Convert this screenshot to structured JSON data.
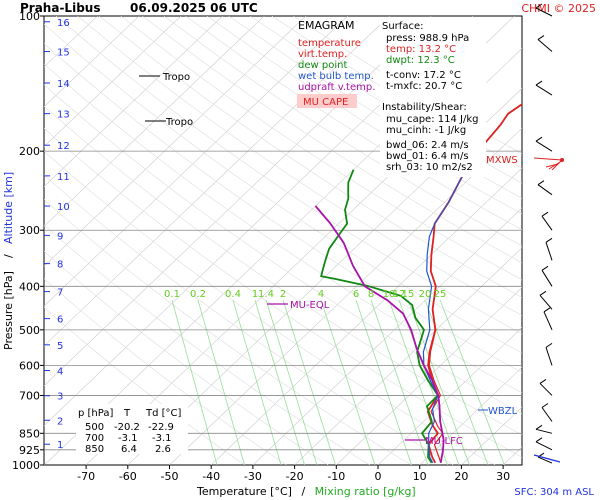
{
  "header": {
    "station": "Praha-Libus",
    "datetime": "06.09.2025 06 UTC",
    "copyright": "CHMI © 2025"
  },
  "legend": {
    "title": "EMAGRAM",
    "items": [
      {
        "label": "temperature",
        "color": "#dd2222"
      },
      {
        "label": "virt.temp.",
        "color": "#dd2222"
      },
      {
        "label": "dew point",
        "color": "#118811"
      },
      {
        "label": "wet bulb temp.",
        "color": "#2255cc"
      },
      {
        "label": "udpraft v.temp.",
        "color": "#aa11aa"
      }
    ],
    "badge": {
      "label": "MU CAPE",
      "color": "#dd2222",
      "bg": "#ffcccc"
    }
  },
  "surface": {
    "title": "Surface:",
    "rows": [
      {
        "label": "press: 988.9 hPa",
        "color": "#000000"
      },
      {
        "label": "temp: 13.2 °C",
        "color": "#dd2222"
      },
      {
        "label": "dwpt: 12.3 °C",
        "color": "#118811"
      },
      {
        "label": "t-conv: 17.2 °C",
        "color": "#000000"
      },
      {
        "label": "t-mxfc: 20.7 °C",
        "color": "#000000"
      }
    ]
  },
  "instability": {
    "title": "Instability/Shear:",
    "rows": [
      "mu_cape: 114 J/kg",
      "mu_cinh: -1 J/kg",
      "bwd_06: 2.4 m/s",
      "bwd_01: 6.4 m/s",
      "srh_03: 10 m2/s2"
    ]
  },
  "table": {
    "headers": [
      "p [hPa]",
      "T",
      "Td [°C]"
    ],
    "rows": [
      [
        "500",
        "-20.2",
        "-22.9"
      ],
      [
        "700",
        "-3.1",
        "-3.1"
      ],
      [
        "850",
        "6.4",
        "2.6"
      ]
    ]
  },
  "axes": {
    "ylabel": "Pressure [hPa]",
    "ylabel2": "Altitude [km]",
    "xlabel": "Temperature [°C]",
    "xlabel_sep": "/",
    "xlabel2": "Mixing ratio [g/kg]",
    "sfc": "SFC: 304 m ASL",
    "colors": {
      "axis": "#000000",
      "altitude": "#2233dd",
      "mixing": "#22aa22",
      "grid": "#999999"
    }
  },
  "annotations": {
    "tropo1": "Tropo",
    "tropo2": "Tropo",
    "mu_eql": "MU-EQL",
    "mu_lfc": "MU-LFC",
    "wbzl": "WBZL",
    "mxws": "MXWS"
  },
  "chart_data": {
    "type": "line",
    "title": "EMAGRAM",
    "xlabel": "Temperature [°C]",
    "ylabel": "Pressure [hPa]",
    "xlim": [
      -80,
      40
    ],
    "ylim": [
      1000,
      100
    ],
    "y_scale": "log",
    "x_ticks": [
      -70,
      -60,
      -50,
      -40,
      -30,
      -20,
      -10,
      0,
      10,
      20,
      30
    ],
    "y_ticks": [
      100,
      200,
      300,
      400,
      500,
      600,
      700,
      850,
      925,
      1000
    ],
    "altitude_ticks_km": [
      1,
      2,
      3,
      4,
      5,
      6,
      7,
      8,
      9,
      10,
      11,
      12,
      13,
      14,
      15,
      16
    ],
    "mixing_ratio_labels": [
      "0.1",
      "0.2",
      "0.4",
      "1",
      "1.4",
      "2",
      "4",
      "6",
      "8",
      "10",
      "12",
      "15",
      "20",
      "25"
    ],
    "series": [
      {
        "name": "temperature",
        "color": "#dd2222",
        "points": [
          [
            13.2,
            989
          ],
          [
            11,
            960
          ],
          [
            9,
            930
          ],
          [
            7,
            900
          ],
          [
            6.4,
            850
          ],
          [
            3.5,
            820
          ],
          [
            1,
            790
          ],
          [
            -1.5,
            760
          ],
          [
            -3.1,
            700
          ],
          [
            -8,
            650
          ],
          [
            -13,
            600
          ],
          [
            -16,
            560
          ],
          [
            -20.2,
            500
          ],
          [
            -26,
            450
          ],
          [
            -31,
            400
          ],
          [
            -36,
            370
          ],
          [
            -40,
            340
          ],
          [
            -44,
            310
          ],
          [
            -47,
            290
          ],
          [
            -49,
            260
          ],
          [
            -52,
            230
          ],
          [
            -54,
            210
          ],
          [
            -55,
            195
          ],
          [
            -56,
            175
          ],
          [
            -57,
            165
          ],
          [
            -56,
            157
          ],
          [
            -54,
            152
          ],
          [
            -56,
            145
          ],
          [
            -54,
            136
          ],
          [
            -55,
            125
          ],
          [
            -56,
            112
          ],
          [
            -57,
            100
          ]
        ]
      },
      {
        "name": "virt.temp.",
        "color": "#dd2222",
        "points": [
          [
            14.5,
            989
          ],
          [
            12.6,
            960
          ],
          [
            10.5,
            930
          ],
          [
            8.4,
            900
          ],
          [
            7.6,
            850
          ],
          [
            4.6,
            820
          ],
          [
            2,
            790
          ],
          [
            -0.7,
            760
          ],
          [
            -2.5,
            700
          ],
          [
            -7.6,
            650
          ],
          [
            -12.7,
            600
          ],
          [
            -15.8,
            560
          ],
          [
            -20.1,
            500
          ],
          [
            -26,
            450
          ],
          [
            -31,
            400
          ],
          [
            -36,
            370
          ],
          [
            -40,
            340
          ],
          [
            -44,
            310
          ],
          [
            -47,
            290
          ],
          [
            -49,
            260
          ],
          [
            -52,
            230
          ],
          [
            -54,
            210
          ],
          [
            -55,
            195
          ],
          [
            -56,
            175
          ],
          [
            -57,
            165
          ],
          [
            -56,
            157
          ],
          [
            -54,
            152
          ],
          [
            -56,
            145
          ],
          [
            -54,
            136
          ],
          [
            -55,
            125
          ],
          [
            -56,
            112
          ],
          [
            -57,
            100
          ]
        ]
      },
      {
        "name": "dew point",
        "color": "#118811",
        "points": [
          [
            12.3,
            989
          ],
          [
            10,
            960
          ],
          [
            8.5,
            930
          ],
          [
            7,
            900
          ],
          [
            2.6,
            850
          ],
          [
            2,
            800
          ],
          [
            -3,
            740
          ],
          [
            -3.1,
            700
          ],
          [
            -9,
            650
          ],
          [
            -15,
            600
          ],
          [
            -19,
            560
          ],
          [
            -22.9,
            500
          ],
          [
            -28,
            470
          ],
          [
            -32,
            440
          ],
          [
            -37,
            420
          ],
          [
            -47,
            400
          ],
          [
            -57,
            385
          ],
          [
            -61,
            380
          ],
          [
            -62,
            370
          ],
          [
            -64,
            350
          ],
          [
            -66,
            330
          ],
          [
            -67,
            310
          ],
          [
            -68,
            290
          ],
          [
            -72,
            270
          ],
          [
            -74,
            255
          ],
          [
            -76,
            245
          ],
          [
            -78,
            235
          ],
          [
            -80,
            220
          ]
        ]
      },
      {
        "name": "wet bulb temp.",
        "color": "#2255cc",
        "points": [
          [
            12.6,
            989
          ],
          [
            10.4,
            960
          ],
          [
            8.7,
            930
          ],
          [
            7,
            900
          ],
          [
            4.2,
            850
          ],
          [
            2.6,
            800
          ],
          [
            -1,
            750
          ],
          [
            -3.1,
            700
          ],
          [
            -8.5,
            650
          ],
          [
            -14,
            600
          ],
          [
            -17.5,
            560
          ],
          [
            -21.5,
            500
          ],
          [
            -27,
            450
          ],
          [
            -32,
            400
          ],
          [
            -37,
            370
          ],
          [
            -41,
            340
          ],
          [
            -45,
            310
          ],
          [
            -47,
            290
          ],
          [
            -49,
            260
          ],
          [
            -52,
            230
          ],
          [
            -54,
            210
          ],
          [
            -55,
            195
          ]
        ]
      },
      {
        "name": "udpraft v.temp.",
        "color": "#aa11aa",
        "points": [
          [
            14.5,
            989
          ],
          [
            12,
            930
          ],
          [
            9.5,
            880
          ],
          [
            7.5,
            850
          ],
          [
            4,
            800
          ],
          [
            0,
            740
          ],
          [
            -3,
            700
          ],
          [
            -8,
            650
          ],
          [
            -14,
            600
          ],
          [
            -20,
            550
          ],
          [
            -26,
            500
          ],
          [
            -32,
            460
          ],
          [
            -39,
            430
          ],
          [
            -48,
            400
          ],
          [
            -56,
            360
          ],
          [
            -64,
            320
          ],
          [
            -72,
            290
          ],
          [
            -80,
            265
          ]
        ]
      }
    ],
    "wind_barbs_hpa": [
      990,
      925,
      850,
      800,
      700,
      600,
      500,
      450,
      400,
      350,
      300,
      250,
      200,
      150,
      120,
      100
    ]
  }
}
